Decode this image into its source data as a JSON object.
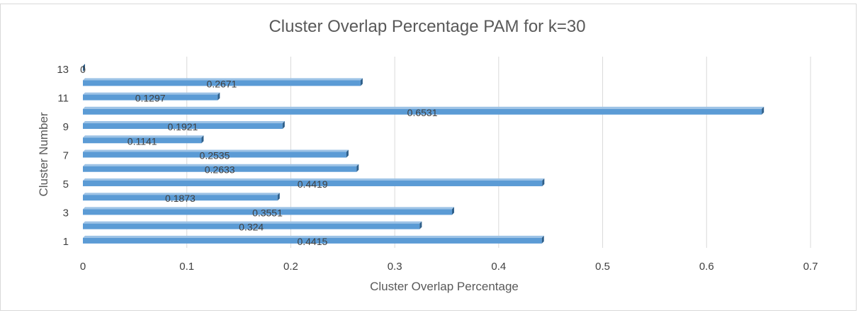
{
  "chart_data": {
    "type": "bar",
    "orientation": "horizontal",
    "title": "Cluster Overlap Percentage PAM for k=30",
    "xlabel": "Cluster Overlap Percentage",
    "ylabel": "Cluster Number",
    "xlim": [
      0,
      0.7
    ],
    "x_ticks": [
      "0",
      "0.1",
      "0.2",
      "0.3",
      "0.4",
      "0.5",
      "0.6",
      "0.7"
    ],
    "categories": [
      "1",
      "2",
      "3",
      "4",
      "5",
      "6",
      "7",
      "8",
      "9",
      "10",
      "11",
      "12",
      "13"
    ],
    "y_tick_labels": [
      "1",
      "3",
      "5",
      "7",
      "9",
      "11",
      "13"
    ],
    "values": [
      0.4415,
      0.324,
      0.3551,
      0.1873,
      0.4419,
      0.2633,
      0.2535,
      0.1141,
      0.1921,
      0.6531,
      0.1297,
      0.2671,
      0
    ],
    "data_labels": [
      "0.4415",
      "0.324",
      "0.3551",
      "0.1873",
      "0.4419",
      "0.2633",
      "0.2535",
      "0.1141",
      "0.1921",
      "0.6531",
      "0.1297",
      "0.2671",
      "0"
    ],
    "grid": "vertical",
    "legend": "none",
    "bar_color": "#5b9bd5",
    "bar_edge_color": "#2e5f8a"
  }
}
